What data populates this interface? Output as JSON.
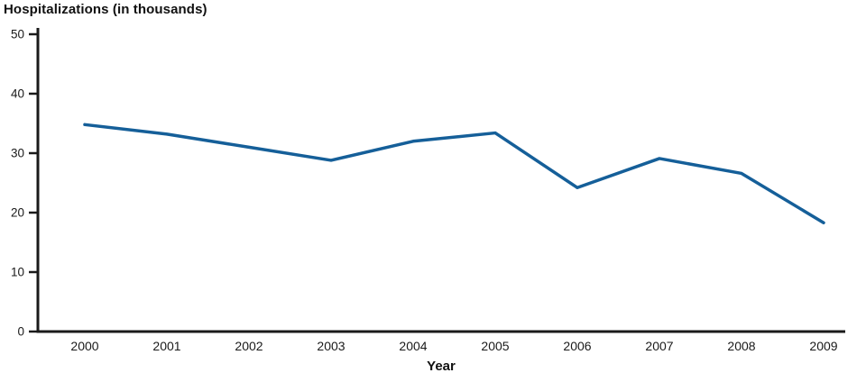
{
  "chart_data": {
    "type": "line",
    "title": "Hospitalizations (in thousands)",
    "xlabel": "Year",
    "ylabel": "",
    "categories": [
      "2000",
      "2001",
      "2002",
      "2003",
      "2004",
      "2005",
      "2006",
      "2007",
      "2008",
      "2009"
    ],
    "values": [
      34.8,
      33.2,
      31.0,
      28.8,
      32.0,
      33.4,
      24.2,
      29.1,
      26.6,
      18.3
    ],
    "ylim": [
      0,
      50
    ],
    "yticks": [
      0,
      10,
      20,
      30,
      40,
      50
    ],
    "line_color": "#155f99",
    "axis_color": "#1a1a1a",
    "grid": false,
    "legend": "none"
  }
}
